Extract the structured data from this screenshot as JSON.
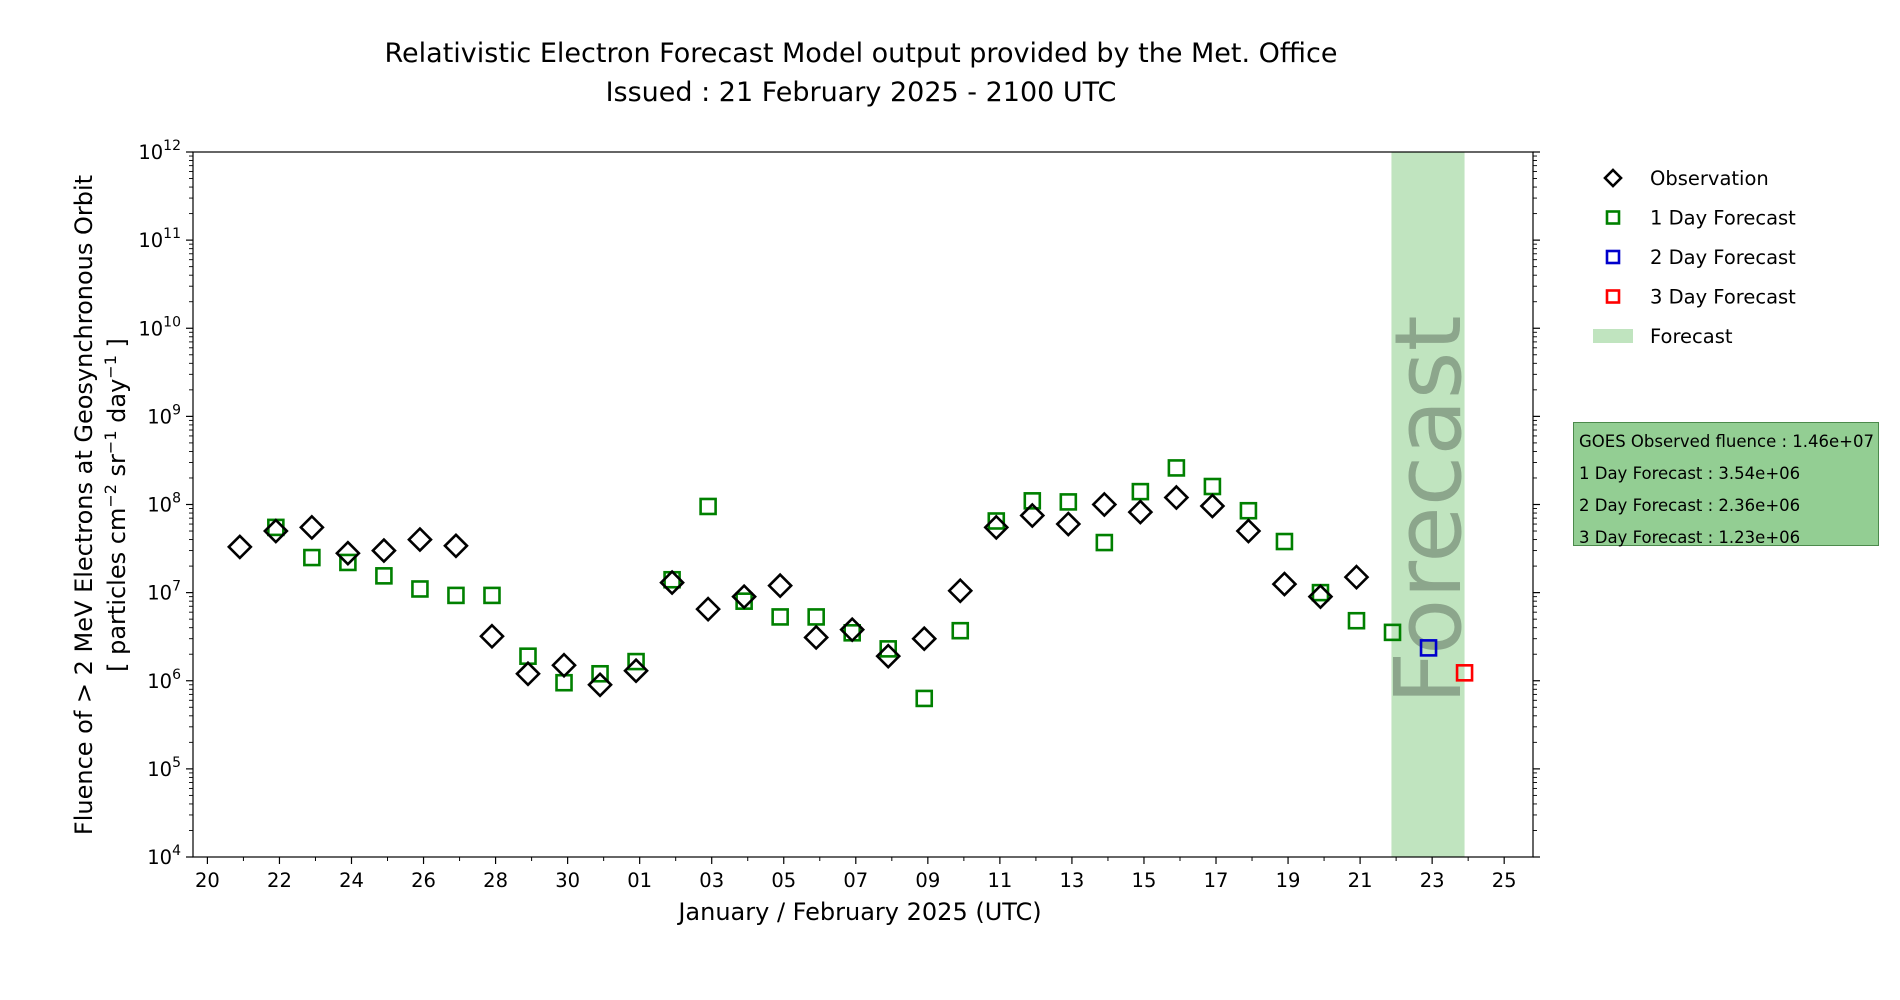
{
  "header": {
    "title_line1": "Relativistic Electron Forecast Model output provided by the Met. Office",
    "title_line2": "Issued : 21 February 2025 - 2100 UTC"
  },
  "info_box": {
    "goes": "GOES Observed fluence : 1.46e+07",
    "day1": "1 Day Forecast : 3.54e+06",
    "day2": "2 Day Forecast : 2.36e+06",
    "day3": "3 Day Forecast : 1.23e+06"
  },
  "colors": {
    "observation": "#000000",
    "day1": "#008000",
    "day2": "#0000cc",
    "day3": "#ff0000",
    "forecast_band": "#c0e4bf",
    "forecast_text": "#8ca68c"
  },
  "chart_data": {
    "type": "scatter",
    "title": "Relativistic Electron Forecast Model output provided by the Met. Office",
    "subtitle": "Issued : 21 February 2025 - 2100 UTC",
    "xlabel": "January / February 2025 (UTC)",
    "ylabel_line1": "Fluence of > 2 MeV Electrons at Geosynchronous Orbit",
    "ylabel_line2": "[ particles cm",
    "ylabel_sup1": "−2",
    "ylabel_mid1": " sr",
    "ylabel_sup2": "−1",
    "ylabel_mid2": " day",
    "ylabel_sup3": "−1",
    "ylabel_end": " ]",
    "yscale": "log",
    "ylim_exponents": [
      4,
      12
    ],
    "y_tick_exponents": [
      4,
      5,
      6,
      7,
      8,
      9,
      10,
      11,
      12
    ],
    "y_tick_base": "10",
    "xlim_days": [
      19.6,
      56.8
    ],
    "x_ticks": [
      {
        "day": 20,
        "label": "20"
      },
      {
        "day": 22,
        "label": "22"
      },
      {
        "day": 24,
        "label": "24"
      },
      {
        "day": 26,
        "label": "26"
      },
      {
        "day": 28,
        "label": "28"
      },
      {
        "day": 30,
        "label": "30"
      },
      {
        "day": 32,
        "label": "01"
      },
      {
        "day": 34,
        "label": "03"
      },
      {
        "day": 36,
        "label": "05"
      },
      {
        "day": 38,
        "label": "07"
      },
      {
        "day": 40,
        "label": "09"
      },
      {
        "day": 42,
        "label": "11"
      },
      {
        "day": 44,
        "label": "13"
      },
      {
        "day": 46,
        "label": "15"
      },
      {
        "day": 48,
        "label": "17"
      },
      {
        "day": 50,
        "label": "19"
      },
      {
        "day": 52,
        "label": "21"
      },
      {
        "day": 54,
        "label": "23"
      },
      {
        "day": 56,
        "label": "25"
      }
    ],
    "forecast_band_days": [
      52.87,
      54.9
    ],
    "forecast_band_label": "Forecast",
    "legend_position": "upper-right-outside",
    "legend": [
      {
        "key": "observation",
        "label": "Observation"
      },
      {
        "key": "day1",
        "label": "1 Day Forecast"
      },
      {
        "key": "day2",
        "label": "2 Day Forecast"
      },
      {
        "key": "day3",
        "label": "3 Day Forecast"
      },
      {
        "key": "band",
        "label": "Forecast"
      }
    ],
    "series": [
      {
        "name": "Observation",
        "key": "observation",
        "marker": "diamond",
        "points": [
          [
            20.9,
            33000000.0
          ],
          [
            21.9,
            50000000.0
          ],
          [
            22.9,
            55000000.0
          ],
          [
            23.9,
            28000000.0
          ],
          [
            24.9,
            30000000.0
          ],
          [
            25.9,
            40000000.0
          ],
          [
            26.9,
            34000000.0
          ],
          [
            27.9,
            3200000.0
          ],
          [
            28.9,
            1200000.0
          ],
          [
            29.9,
            1500000.0
          ],
          [
            30.9,
            900000.0
          ],
          [
            31.9,
            1300000.0
          ],
          [
            32.9,
            13000000.0
          ],
          [
            33.9,
            6500000.0
          ],
          [
            34.9,
            9000000.0
          ],
          [
            35.9,
            12000000.0
          ],
          [
            36.9,
            3100000.0
          ],
          [
            37.9,
            3800000.0
          ],
          [
            38.9,
            1900000.0
          ],
          [
            39.9,
            3000000.0
          ],
          [
            40.9,
            10500000.0
          ],
          [
            41.9,
            55000000.0
          ],
          [
            42.9,
            75000000.0
          ],
          [
            43.9,
            60000000.0
          ],
          [
            44.9,
            100000000.0
          ],
          [
            45.9,
            82000000.0
          ],
          [
            46.9,
            120000000.0
          ],
          [
            47.9,
            96000000.0
          ],
          [
            48.9,
            50000000.0
          ],
          [
            49.9,
            12500000.0
          ],
          [
            50.9,
            9000000.0
          ],
          [
            51.9,
            15000000.0
          ]
        ]
      },
      {
        "name": "1 Day Forecast",
        "key": "day1",
        "marker": "square",
        "points": [
          [
            21.9,
            55000000.0
          ],
          [
            22.9,
            25000000.0
          ],
          [
            23.9,
            22000000.0
          ],
          [
            24.9,
            15500000.0
          ],
          [
            25.9,
            11000000.0
          ],
          [
            26.9,
            9300000.0
          ],
          [
            27.9,
            9300000.0
          ],
          [
            28.9,
            1900000.0
          ],
          [
            29.9,
            950000.0
          ],
          [
            30.9,
            1200000.0
          ],
          [
            31.9,
            1650000.0
          ],
          [
            32.9,
            14000000.0
          ],
          [
            33.9,
            95000000.0
          ],
          [
            34.9,
            8000000.0
          ],
          [
            35.9,
            5300000.0
          ],
          [
            36.9,
            5300000.0
          ],
          [
            37.9,
            3500000.0
          ],
          [
            38.9,
            2300000.0
          ],
          [
            39.9,
            630000.0
          ],
          [
            40.9,
            3700000.0
          ],
          [
            41.9,
            65000000.0
          ],
          [
            42.9,
            110000000.0
          ],
          [
            43.9,
            107000000.0
          ],
          [
            44.9,
            37000000.0
          ],
          [
            45.9,
            140000000.0
          ],
          [
            46.9,
            260000000.0
          ],
          [
            47.9,
            160000000.0
          ],
          [
            48.9,
            85000000.0
          ],
          [
            49.9,
            38000000.0
          ],
          [
            50.9,
            10000000.0
          ],
          [
            51.9,
            4800000.0
          ],
          [
            52.9,
            3540000.0
          ]
        ]
      },
      {
        "name": "2 Day Forecast",
        "key": "day2",
        "marker": "square",
        "points": [
          [
            53.9,
            2360000.0
          ]
        ]
      },
      {
        "name": "3 Day Forecast",
        "key": "day3",
        "marker": "square",
        "points": [
          [
            54.9,
            1230000.0
          ]
        ]
      }
    ]
  }
}
